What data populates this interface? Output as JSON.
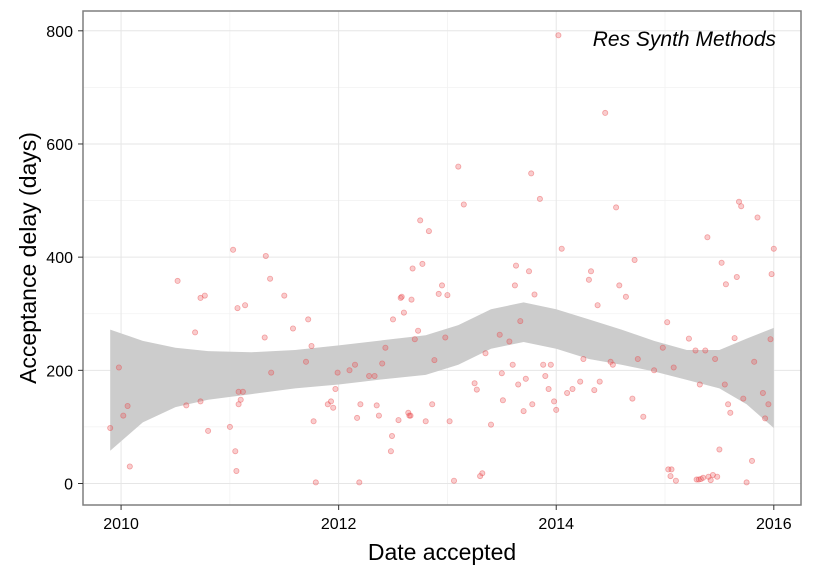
{
  "chart_data": {
    "type": "scatter",
    "title": "",
    "xlabel": "Date accepted",
    "ylabel": "Acceptance delay (days)",
    "annotation": "Res Synth Methods",
    "x_unit": "year",
    "xlim": [
      2009.65,
      2016.25
    ],
    "ylim": [
      -38,
      835
    ],
    "x_ticks": [
      2010,
      2012,
      2014,
      2016
    ],
    "x_tick_labels": [
      "2010",
      "2012",
      "2014",
      "2016"
    ],
    "y_ticks": [
      0,
      200,
      400,
      600,
      800
    ],
    "y_tick_labels": [
      "0",
      "200",
      "400",
      "600",
      "800"
    ],
    "grid": true,
    "point_color": "#e8474a",
    "band_color": "#cccccc",
    "points": [
      [
        2009.9,
        98
      ],
      [
        2009.98,
        205
      ],
      [
        2010.02,
        120
      ],
      [
        2010.06,
        137
      ],
      [
        2010.08,
        30
      ],
      [
        2010.52,
        358
      ],
      [
        2010.6,
        138
      ],
      [
        2010.68,
        267
      ],
      [
        2010.73,
        145
      ],
      [
        2010.73,
        328
      ],
      [
        2010.77,
        332
      ],
      [
        2010.8,
        93
      ],
      [
        2011.0,
        100
      ],
      [
        2011.03,
        413
      ],
      [
        2011.05,
        57
      ],
      [
        2011.06,
        22
      ],
      [
        2011.07,
        310
      ],
      [
        2011.08,
        140
      ],
      [
        2011.08,
        162
      ],
      [
        2011.1,
        148
      ],
      [
        2011.12,
        162
      ],
      [
        2011.14,
        315
      ],
      [
        2011.32,
        258
      ],
      [
        2011.33,
        402
      ],
      [
        2011.37,
        362
      ],
      [
        2011.38,
        196
      ],
      [
        2011.5,
        332
      ],
      [
        2011.58,
        274
      ],
      [
        2011.7,
        215
      ],
      [
        2011.72,
        290
      ],
      [
        2011.75,
        243
      ],
      [
        2011.77,
        110
      ],
      [
        2011.79,
        2
      ],
      [
        2011.9,
        140
      ],
      [
        2011.93,
        145
      ],
      [
        2011.95,
        134
      ],
      [
        2011.97,
        167
      ],
      [
        2011.99,
        196
      ],
      [
        2012.1,
        200
      ],
      [
        2012.15,
        210
      ],
      [
        2012.17,
        116
      ],
      [
        2012.19,
        2
      ],
      [
        2012.2,
        140
      ],
      [
        2012.28,
        190
      ],
      [
        2012.33,
        190
      ],
      [
        2012.35,
        138
      ],
      [
        2012.37,
        120
      ],
      [
        2012.4,
        212
      ],
      [
        2012.43,
        240
      ],
      [
        2012.48,
        57
      ],
      [
        2012.49,
        84
      ],
      [
        2012.5,
        290
      ],
      [
        2012.55,
        112
      ],
      [
        2012.57,
        328
      ],
      [
        2012.58,
        330
      ],
      [
        2012.6,
        302
      ],
      [
        2012.64,
        125
      ],
      [
        2012.65,
        120
      ],
      [
        2012.66,
        120
      ],
      [
        2012.67,
        325
      ],
      [
        2012.68,
        380
      ],
      [
        2012.7,
        255
      ],
      [
        2012.73,
        270
      ],
      [
        2012.75,
        465
      ],
      [
        2012.77,
        388
      ],
      [
        2012.8,
        110
      ],
      [
        2012.83,
        446
      ],
      [
        2012.86,
        140
      ],
      [
        2012.88,
        218
      ],
      [
        2012.92,
        335
      ],
      [
        2012.95,
        350
      ],
      [
        2012.98,
        258
      ],
      [
        2013.0,
        333
      ],
      [
        2013.02,
        110
      ],
      [
        2013.06,
        5
      ],
      [
        2013.1,
        560
      ],
      [
        2013.15,
        493
      ],
      [
        2013.25,
        177
      ],
      [
        2013.27,
        166
      ],
      [
        2013.3,
        13
      ],
      [
        2013.32,
        18
      ],
      [
        2013.35,
        230
      ],
      [
        2013.4,
        104
      ],
      [
        2013.48,
        263
      ],
      [
        2013.5,
        195
      ],
      [
        2013.51,
        147
      ],
      [
        2013.57,
        251
      ],
      [
        2013.6,
        210
      ],
      [
        2013.62,
        350
      ],
      [
        2013.63,
        385
      ],
      [
        2013.65,
        175
      ],
      [
        2013.67,
        287
      ],
      [
        2013.7,
        128
      ],
      [
        2013.72,
        185
      ],
      [
        2013.75,
        375
      ],
      [
        2013.77,
        548
      ],
      [
        2013.78,
        140
      ],
      [
        2013.8,
        334
      ],
      [
        2013.85,
        503
      ],
      [
        2013.88,
        210
      ],
      [
        2013.9,
        190
      ],
      [
        2013.93,
        167
      ],
      [
        2013.95,
        210
      ],
      [
        2013.98,
        145
      ],
      [
        2014.0,
        130
      ],
      [
        2014.02,
        792
      ],
      [
        2014.05,
        415
      ],
      [
        2014.1,
        160
      ],
      [
        2014.15,
        167
      ],
      [
        2014.22,
        180
      ],
      [
        2014.25,
        220
      ],
      [
        2014.3,
        360
      ],
      [
        2014.32,
        375
      ],
      [
        2014.35,
        165
      ],
      [
        2014.38,
        315
      ],
      [
        2014.4,
        180
      ],
      [
        2014.45,
        655
      ],
      [
        2014.5,
        215
      ],
      [
        2014.52,
        210
      ],
      [
        2014.55,
        488
      ],
      [
        2014.58,
        350
      ],
      [
        2014.64,
        330
      ],
      [
        2014.7,
        150
      ],
      [
        2014.72,
        395
      ],
      [
        2014.75,
        220
      ],
      [
        2014.8,
        118
      ],
      [
        2014.9,
        200
      ],
      [
        2014.98,
        240
      ],
      [
        2015.02,
        285
      ],
      [
        2015.03,
        25
      ],
      [
        2015.05,
        13
      ],
      [
        2015.06,
        25
      ],
      [
        2015.08,
        205
      ],
      [
        2015.1,
        5
      ],
      [
        2015.22,
        256
      ],
      [
        2015.28,
        235
      ],
      [
        2015.29,
        7
      ],
      [
        2015.31,
        7
      ],
      [
        2015.32,
        175
      ],
      [
        2015.33,
        8
      ],
      [
        2015.35,
        10
      ],
      [
        2015.37,
        235
      ],
      [
        2015.39,
        435
      ],
      [
        2015.4,
        12
      ],
      [
        2015.42,
        6
      ],
      [
        2015.44,
        15
      ],
      [
        2015.46,
        220
      ],
      [
        2015.48,
        12
      ],
      [
        2015.5,
        60
      ],
      [
        2015.52,
        390
      ],
      [
        2015.55,
        175
      ],
      [
        2015.56,
        352
      ],
      [
        2015.58,
        140
      ],
      [
        2015.6,
        125
      ],
      [
        2015.64,
        257
      ],
      [
        2015.66,
        365
      ],
      [
        2015.68,
        498
      ],
      [
        2015.7,
        490
      ],
      [
        2015.72,
        150
      ],
      [
        2015.75,
        2
      ],
      [
        2015.8,
        40
      ],
      [
        2015.82,
        215
      ],
      [
        2015.85,
        470
      ],
      [
        2015.9,
        160
      ],
      [
        2015.92,
        115
      ],
      [
        2015.95,
        140
      ],
      [
        2015.97,
        255
      ],
      [
        2015.98,
        370
      ],
      [
        2016.0,
        415
      ]
    ],
    "band": [
      {
        "x": 2009.9,
        "lower": 58,
        "upper": 272
      },
      {
        "x": 2010.2,
        "lower": 108,
        "upper": 252
      },
      {
        "x": 2010.5,
        "lower": 135,
        "upper": 240
      },
      {
        "x": 2010.8,
        "lower": 148,
        "upper": 234
      },
      {
        "x": 2011.2,
        "lower": 158,
        "upper": 232
      },
      {
        "x": 2011.6,
        "lower": 168,
        "upper": 236
      },
      {
        "x": 2012.0,
        "lower": 175,
        "upper": 244
      },
      {
        "x": 2012.4,
        "lower": 184,
        "upper": 253
      },
      {
        "x": 2012.8,
        "lower": 192,
        "upper": 262
      },
      {
        "x": 2013.1,
        "lower": 210,
        "upper": 280
      },
      {
        "x": 2013.4,
        "lower": 238,
        "upper": 308
      },
      {
        "x": 2013.7,
        "lower": 250,
        "upper": 320
      },
      {
        "x": 2014.0,
        "lower": 238,
        "upper": 308
      },
      {
        "x": 2014.3,
        "lower": 220,
        "upper": 290
      },
      {
        "x": 2014.6,
        "lower": 210,
        "upper": 272
      },
      {
        "x": 2014.9,
        "lower": 198,
        "upper": 252
      },
      {
        "x": 2015.2,
        "lower": 183,
        "upper": 236
      },
      {
        "x": 2015.5,
        "lower": 168,
        "upper": 236
      },
      {
        "x": 2015.75,
        "lower": 140,
        "upper": 256
      },
      {
        "x": 2016.0,
        "lower": 98,
        "upper": 275
      }
    ]
  }
}
